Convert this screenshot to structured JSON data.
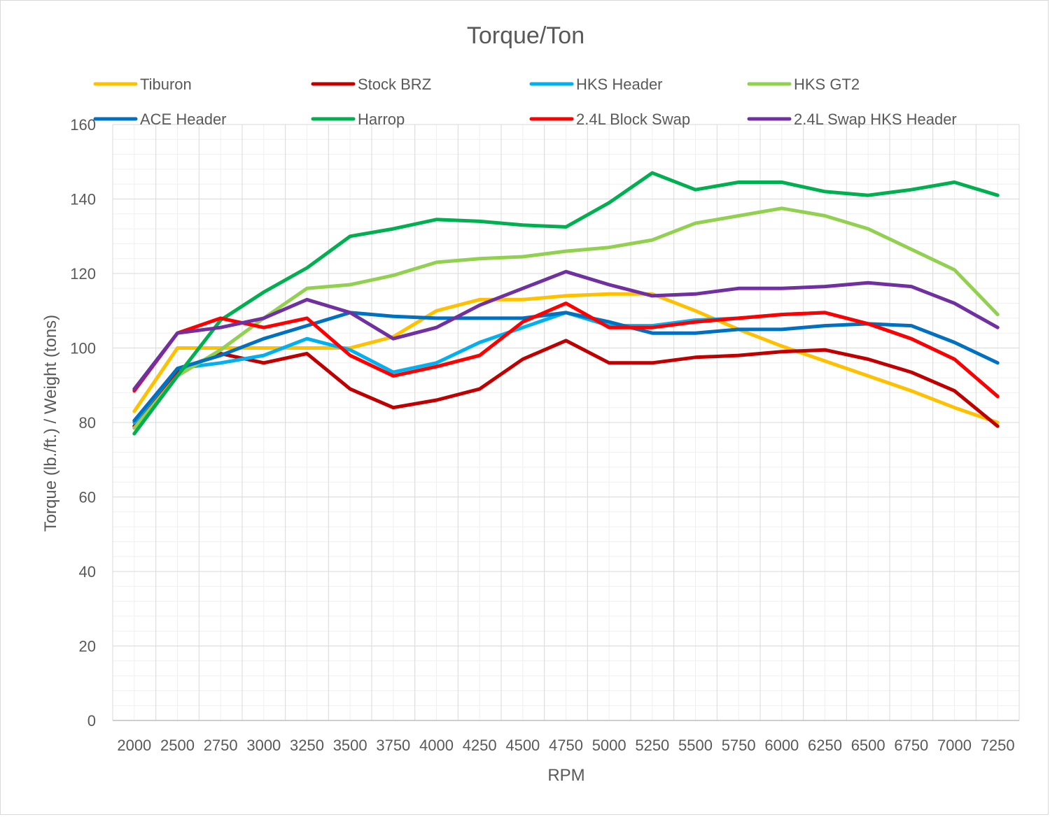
{
  "chart_data": {
    "type": "line",
    "title": "Torque/Ton",
    "xlabel": "RPM",
    "ylabel": "Torque (lb./ft.) / Weight (tons)",
    "ylim": [
      0,
      160
    ],
    "yticks": [
      0,
      20,
      40,
      60,
      80,
      100,
      120,
      140,
      160
    ],
    "x": [
      2000,
      2500,
      2750,
      3000,
      3250,
      3500,
      3750,
      4000,
      4250,
      4500,
      4750,
      5000,
      5250,
      5500,
      5750,
      6000,
      6250,
      6500,
      6750,
      7000,
      7250
    ],
    "grid": true,
    "legend_position": "top",
    "series": [
      {
        "name": "Tiburon",
        "color": "#FFC000",
        "values": [
          83,
          100,
          100,
          100,
          100,
          100,
          103,
          110,
          113,
          113,
          114,
          114.5,
          114.5,
          110,
          105,
          100.5,
          96.5,
          92.5,
          88.5,
          84,
          80
        ]
      },
      {
        "name": "Stock BRZ",
        "color": "#C00000",
        "values": [
          79,
          94,
          98.5,
          96,
          98.5,
          89,
          84,
          86,
          89,
          97,
          102,
          96,
          96,
          97.5,
          98,
          99,
          99.5,
          97,
          93.5,
          88.5,
          79
        ]
      },
      {
        "name": "HKS Header",
        "color": "#00B0F0",
        "values": [
          80,
          94.5,
          96,
          98,
          102.5,
          99.5,
          93.5,
          96,
          101.5,
          105.5,
          109.5,
          106,
          106,
          107.5,
          108,
          109,
          109.5,
          106.5,
          102.5,
          97,
          87
        ]
      },
      {
        "name": "HKS GT2",
        "color": "#92D050",
        "values": [
          78.5,
          92.5,
          99.5,
          108,
          116,
          117,
          119.5,
          123,
          124,
          124.5,
          126,
          127,
          129,
          133.5,
          135.5,
          137.5,
          135.5,
          132,
          126.5,
          121,
          109
        ]
      },
      {
        "name": "ACE Header",
        "color": "#0070C0",
        "values": [
          80.5,
          94.5,
          98,
          102.5,
          106,
          109.5,
          108.5,
          108,
          108,
          108,
          109.5,
          107,
          104,
          104,
          105,
          105,
          106,
          106.5,
          106,
          101.5,
          96
        ]
      },
      {
        "name": "Harrop",
        "color": "#00B050",
        "values": [
          77,
          92.5,
          107.5,
          115,
          121.5,
          130,
          132,
          134.5,
          134,
          133,
          132.5,
          139,
          147,
          142.5,
          144.5,
          144.5,
          142,
          141,
          142.5,
          144.5,
          141
        ]
      },
      {
        "name": "2.4L Block Swap",
        "color": "#FF0000",
        "values": [
          88.5,
          104,
          108,
          105.5,
          108,
          98,
          92.5,
          95,
          98,
          107,
          112,
          105.5,
          105.5,
          107,
          108,
          109,
          109.5,
          106.5,
          102.5,
          97,
          87
        ]
      },
      {
        "name": "2.4L Swap HKS Header",
        "color": "#7030A0",
        "values": [
          89,
          104,
          105.5,
          108,
          113,
          109.5,
          102.5,
          105.5,
          111.5,
          116,
          120.5,
          117,
          114,
          114.5,
          116,
          116,
          116.5,
          117.5,
          116.5,
          112,
          105.5
        ]
      }
    ]
  }
}
